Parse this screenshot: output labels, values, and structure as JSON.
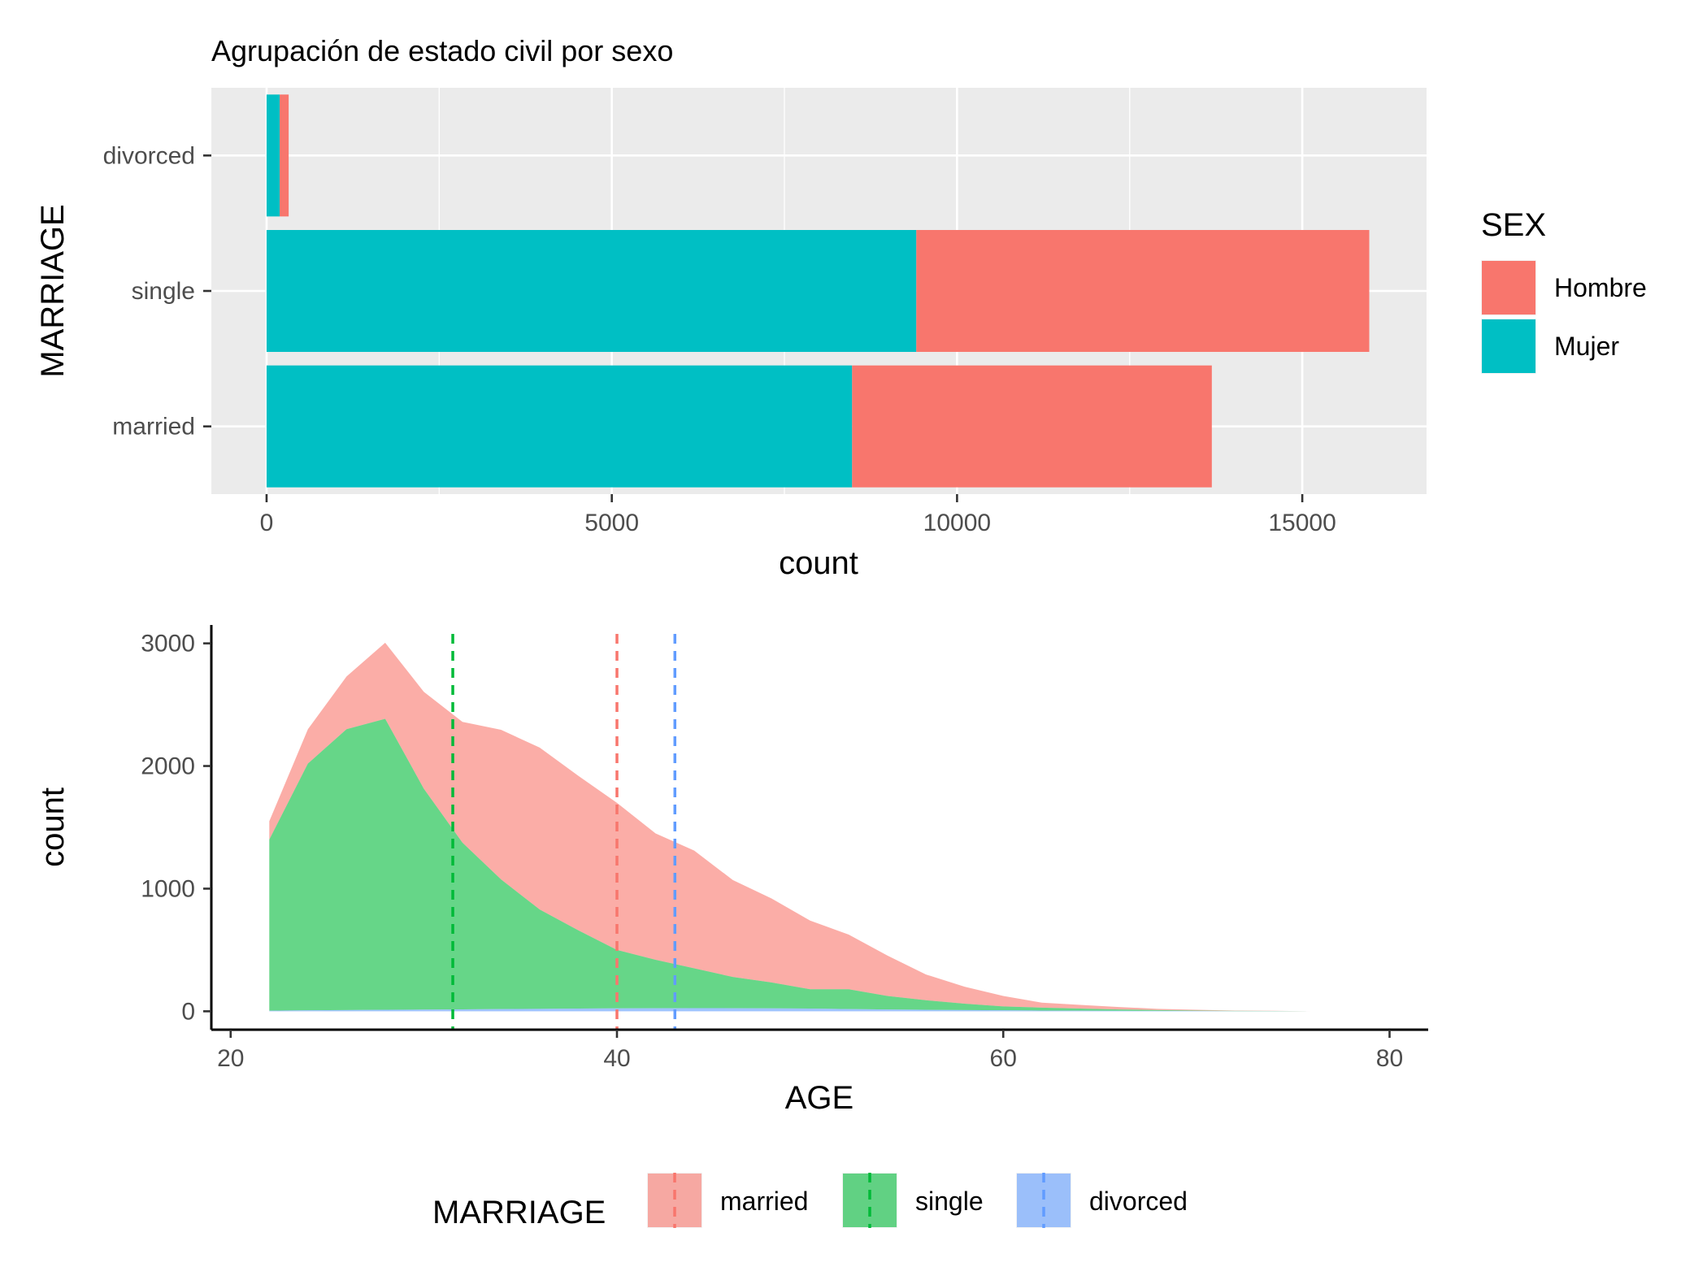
{
  "chart_data": [
    {
      "type": "bar",
      "orientation": "horizontal",
      "stacked": true,
      "title": "Agrupación de estado civil por sexo",
      "xlabel": "count",
      "ylabel": "MARRIAGE",
      "xlim": [
        -800,
        16800
      ],
      "x_ticks": [
        "0",
        "5000",
        "10000",
        "15000"
      ],
      "categories": [
        "married",
        "single",
        "divorced"
      ],
      "series": [
        {
          "name": "Mujer",
          "color": "#00BFC4",
          "values": [
            8480,
            9410,
            190
          ]
        },
        {
          "name": "Hombre",
          "color": "#F8766D",
          "values": [
            5210,
            6560,
            130
          ]
        }
      ],
      "legend": {
        "title": "SEX",
        "position": "right",
        "entries": [
          "Hombre",
          "Mujer"
        ]
      },
      "grid": true
    },
    {
      "type": "area",
      "stacked": true,
      "xlabel": "AGE",
      "ylabel": "count",
      "xlim": [
        19,
        82
      ],
      "ylim": [
        -150,
        3150
      ],
      "x_ticks": [
        "20",
        "40",
        "60",
        "80"
      ],
      "y_ticks": [
        "0",
        "1000",
        "2000",
        "3000"
      ],
      "x": [
        22,
        24,
        26,
        28,
        30,
        32,
        34,
        36,
        38,
        40,
        42,
        44,
        46,
        48,
        50,
        52,
        54,
        56,
        58,
        60,
        62,
        64,
        66,
        68,
        70,
        72,
        74,
        76
      ],
      "series": [
        {
          "name": "divorced",
          "color": "#619CFF",
          "values": [
            5,
            8,
            10,
            12,
            14,
            16,
            18,
            20,
            22,
            24,
            25,
            26,
            25,
            24,
            22,
            18,
            15,
            12,
            10,
            8,
            6,
            5,
            4,
            3,
            2,
            1,
            1,
            0
          ]
        },
        {
          "name": "single",
          "color": "#00BA38",
          "values": [
            1395,
            2012,
            2290,
            2373,
            1801,
            1359,
            1057,
            810,
            638,
            476,
            395,
            324,
            255,
            211,
            158,
            162,
            110,
            78,
            52,
            32,
            24,
            17,
            11,
            7,
            4,
            2,
            1,
            0
          ]
        },
        {
          "name": "married",
          "color": "#F8766D",
          "values": [
            150,
            280,
            430,
            620,
            790,
            985,
            1220,
            1320,
            1260,
            1200,
            1030,
            960,
            790,
            685,
            560,
            445,
            330,
            210,
            138,
            85,
            40,
            30,
            20,
            10,
            6,
            3,
            2,
            0
          ]
        }
      ],
      "reference_lines": [
        {
          "series": "married",
          "x": 40.0,
          "color": "#F8766D"
        },
        {
          "series": "single",
          "x": 31.5,
          "color": "#00BA38"
        },
        {
          "series": "divorced",
          "x": 43.0,
          "color": "#619CFF"
        }
      ],
      "legend": {
        "title": "MARRIAGE",
        "position": "bottom",
        "entries": [
          "married",
          "single",
          "divorced"
        ]
      },
      "grid": false
    }
  ]
}
